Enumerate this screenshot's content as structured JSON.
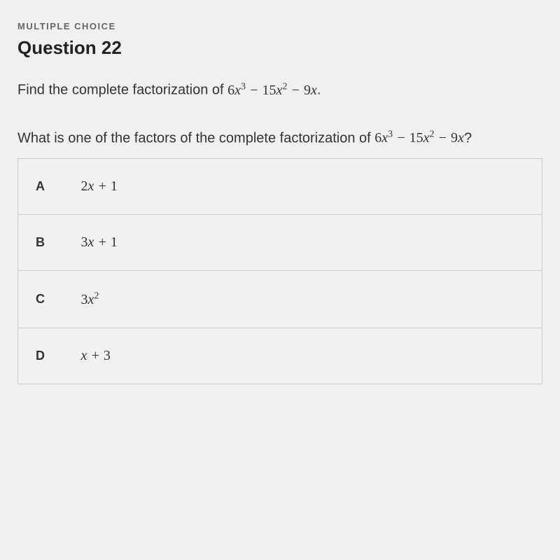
{
  "header": {
    "type_label": "MULTIPLE CHOICE",
    "title": "Question 22"
  },
  "prompt": {
    "text_prefix": "Find the complete factorization of ",
    "expression": "6x³ − 15x² − 9x",
    "text_suffix": "."
  },
  "subprompt": {
    "text_prefix": "What is one of the factors of the complete factorization of ",
    "expression": "6x³ − 15x² − 9x",
    "text_suffix": "?"
  },
  "choices": [
    {
      "letter": "A",
      "expression": "2x + 1"
    },
    {
      "letter": "B",
      "expression": "3x + 1"
    },
    {
      "letter": "C",
      "expression": "3x²"
    },
    {
      "letter": "D",
      "expression": "x + 3"
    }
  ],
  "styling": {
    "background_color": "#f0f0f0",
    "text_color": "#333333",
    "muted_color": "#666666",
    "border_color": "#cccccc",
    "title_fontsize": 26,
    "body_fontsize": 20,
    "choice_fontsize": 19,
    "type_letter_spacing": 1.5
  }
}
